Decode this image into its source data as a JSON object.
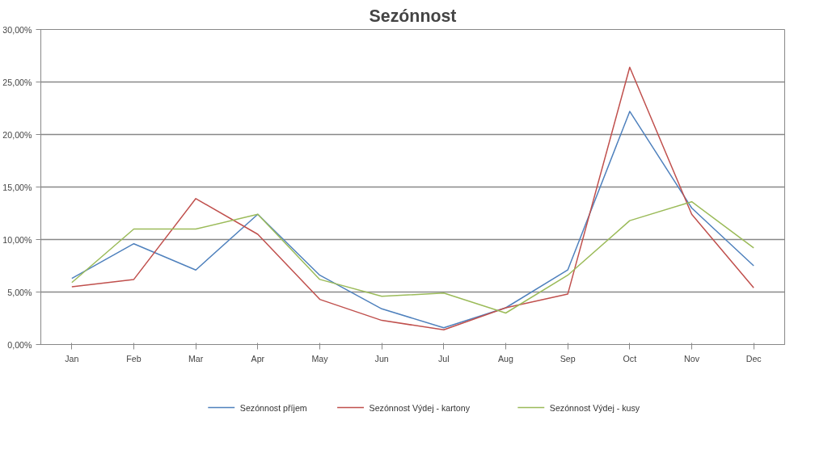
{
  "chart_data": {
    "type": "line",
    "title": "Sezónnost",
    "categories": [
      "Jan",
      "Feb",
      "Mar",
      "Apr",
      "May",
      "Jun",
      "Jul",
      "Aug",
      "Sep",
      "Oct",
      "Nov",
      "Dec"
    ],
    "series": [
      {
        "name": "Sezónnost příjem",
        "color": "#4f81bd",
        "values": [
          6.3,
          9.6,
          7.1,
          12.4,
          6.6,
          3.4,
          1.6,
          3.5,
          7.1,
          22.2,
          13.0,
          7.5
        ]
      },
      {
        "name": "Sezónnost Výdej - kartony",
        "color": "#c0504d",
        "values": [
          5.5,
          6.2,
          13.9,
          10.5,
          4.3,
          2.3,
          1.4,
          3.5,
          4.8,
          26.4,
          12.4,
          5.4
        ]
      },
      {
        "name": "Sezónnost Výdej - kusy",
        "color": "#9bbb59",
        "values": [
          5.9,
          11.0,
          11.0,
          12.4,
          6.2,
          4.6,
          4.9,
          3.0,
          6.6,
          11.8,
          13.6,
          9.2
        ]
      }
    ],
    "ylim": [
      0,
      30
    ],
    "yticks": [
      {
        "value": 0,
        "label": "0,00%"
      },
      {
        "value": 5,
        "label": "5,00%"
      },
      {
        "value": 10,
        "label": "10,00%"
      },
      {
        "value": 15,
        "label": "15,00%"
      },
      {
        "value": 20,
        "label": "20,00%"
      },
      {
        "value": 25,
        "label": "25,00%"
      },
      {
        "value": 30,
        "label": "30,00%"
      }
    ],
    "grid": "y",
    "legend": "bottom",
    "marker": "none",
    "line_style": "solid"
  }
}
